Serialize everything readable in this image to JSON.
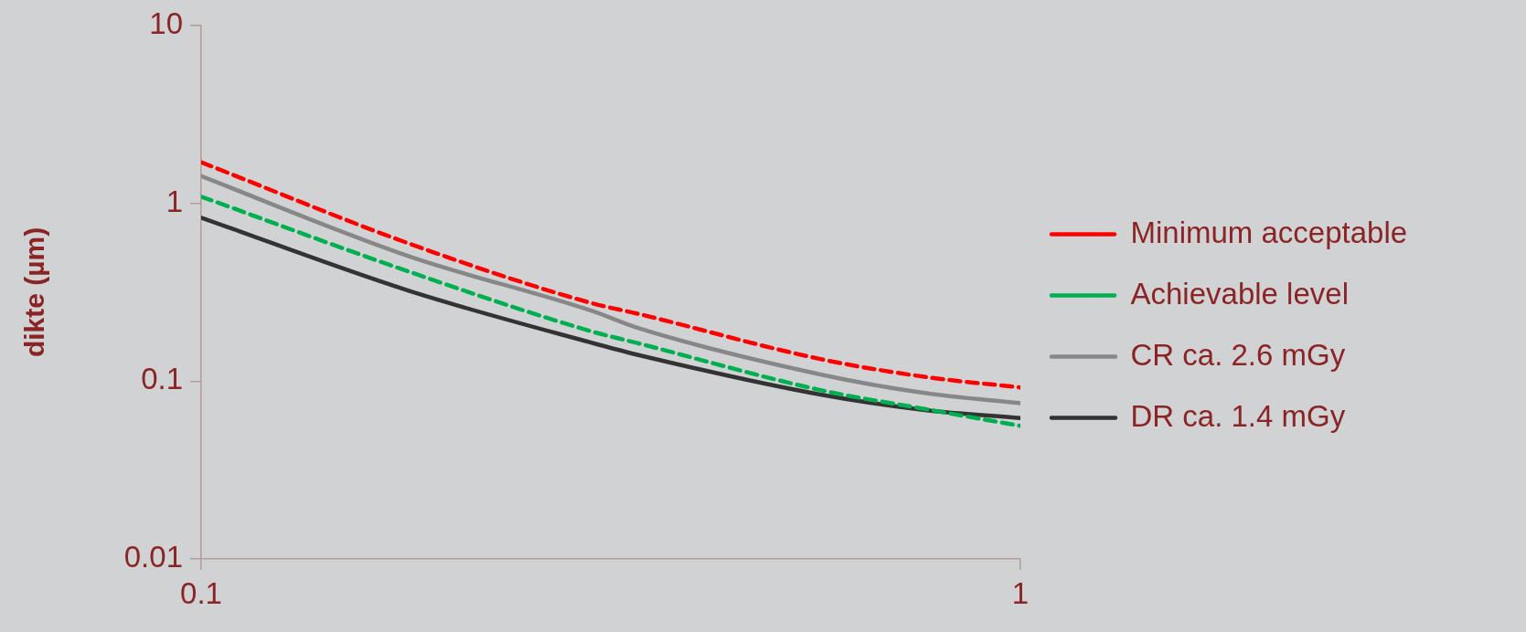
{
  "chart_data": {
    "type": "line",
    "ylabel": "dikte (µm)",
    "log": "xy",
    "x": [
      0.1,
      0.18,
      0.3,
      0.34,
      0.57,
      0.76,
      1
    ],
    "xlim": [
      0.1,
      1
    ],
    "xticks": [
      0.1,
      1
    ],
    "ylim": [
      0.01,
      10
    ],
    "yticks": [
      0.01,
      0.1,
      1,
      10
    ],
    "grid": false,
    "legend": "right",
    "marker": "none",
    "series": [
      {
        "name": "Minimum acceptable",
        "color": "#ff0000",
        "line_style": "dashed",
        "values": [
          1.7,
          0.59,
          0.274,
          0.24,
          0.133,
          0.106,
          0.092
        ]
      },
      {
        "name": "Achievable level",
        "color": "#00b050",
        "line_style": "dashed",
        "values": [
          1.09,
          0.41,
          0.19,
          0.164,
          0.089,
          0.07,
          0.056
        ]
      },
      {
        "name": "CR ca. 2.6 mGy",
        "color": "#878787",
        "line_style": "solid",
        "values": [
          1.42,
          0.5,
          0.248,
          0.2,
          0.109,
          0.086,
          0.075
        ]
      },
      {
        "name": "DR ca. 1.4 mGy",
        "color": "#333333",
        "line_style": "solid",
        "values": [
          0.83,
          0.32,
          0.164,
          0.141,
          0.084,
          0.069,
          0.062
        ]
      }
    ]
  }
}
